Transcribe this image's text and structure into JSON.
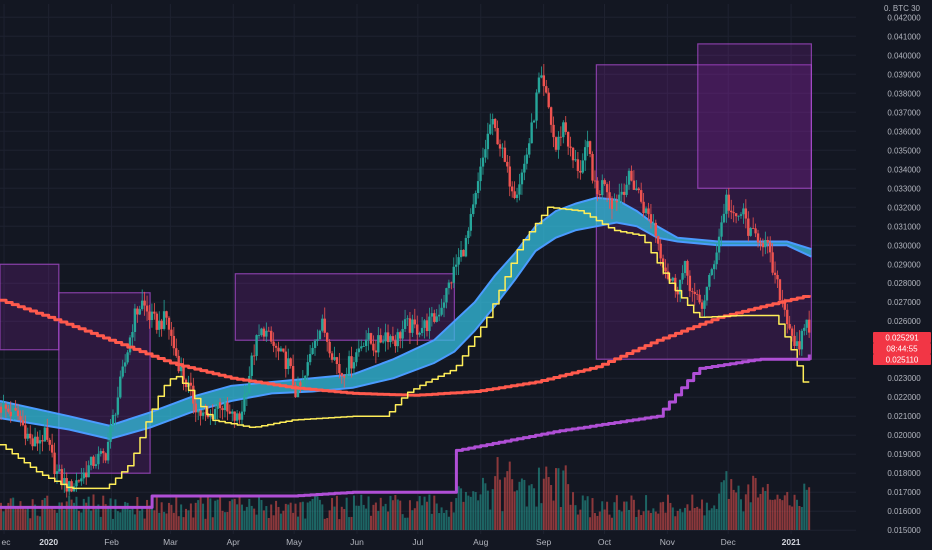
{
  "chart_data": {
    "type": "candlestick",
    "symbol_label": "0. BTC 30",
    "grid": true,
    "legend": "none",
    "y_ticks": [
      "0.042000",
      "0.041000",
      "0.040000",
      "0.039000",
      "0.038000",
      "0.037000",
      "0.036000",
      "0.035000",
      "0.034000",
      "0.033000",
      "0.032000",
      "0.031000",
      "0.030000",
      "0.029000",
      "0.028000",
      "0.027000",
      "0.026000",
      "0.024000",
      "0.023000",
      "0.022000",
      "0.021000",
      "0.020000",
      "0.019000",
      "0.018000",
      "0.017000",
      "0.016000",
      "0.015000"
    ],
    "ylim": [
      0.0148,
      0.0427
    ],
    "x_ticks": [
      {
        "label": "ec",
        "day": -22,
        "bold": false
      },
      {
        "label": "2020",
        "day": 0,
        "bold": true
      },
      {
        "label": "Feb",
        "day": 31,
        "bold": false
      },
      {
        "label": "Mar",
        "day": 60,
        "bold": false
      },
      {
        "label": "Apr",
        "day": 91,
        "bold": false
      },
      {
        "label": "May",
        "day": 121,
        "bold": false
      },
      {
        "label": "Jun",
        "day": 152,
        "bold": false
      },
      {
        "label": "Jul",
        "day": 182,
        "bold": false
      },
      {
        "label": "Aug",
        "day": 213,
        "bold": false
      },
      {
        "label": "Sep",
        "day": 244,
        "bold": false
      },
      {
        "label": "Oct",
        "day": 274,
        "bold": false
      },
      {
        "label": "Nov",
        "day": 305,
        "bold": false
      },
      {
        "label": "Dec",
        "day": 335,
        "bold": false
      },
      {
        "label": "2021",
        "day": 366,
        "bold": true
      }
    ],
    "xlim": [
      -24,
      398
    ],
    "price_path": [
      [
        -24,
        0.0215
      ],
      [
        -15,
        0.021
      ],
      [
        -8,
        0.0195
      ],
      [
        -2,
        0.02
      ],
      [
        4,
        0.018
      ],
      [
        10,
        0.0172
      ],
      [
        16,
        0.0178
      ],
      [
        22,
        0.0186
      ],
      [
        28,
        0.019
      ],
      [
        33,
        0.0215
      ],
      [
        38,
        0.024
      ],
      [
        42,
        0.0262
      ],
      [
        46,
        0.027
      ],
      [
        50,
        0.0262
      ],
      [
        54,
        0.0258
      ],
      [
        58,
        0.0262
      ],
      [
        62,
        0.0245
      ],
      [
        66,
        0.0232
      ],
      [
        70,
        0.0222
      ],
      [
        74,
        0.0212
      ],
      [
        79,
        0.0208
      ],
      [
        84,
        0.0218
      ],
      [
        89,
        0.021
      ],
      [
        94,
        0.0208
      ],
      [
        98,
        0.0228
      ],
      [
        102,
        0.0248
      ],
      [
        106,
        0.0256
      ],
      [
        110,
        0.0248
      ],
      [
        114,
        0.0242
      ],
      [
        118,
        0.0238
      ],
      [
        122,
        0.0222
      ],
      [
        126,
        0.0228
      ],
      [
        131,
        0.0252
      ],
      [
        135,
        0.0258
      ],
      [
        139,
        0.0246
      ],
      [
        144,
        0.0232
      ],
      [
        150,
        0.024
      ],
      [
        156,
        0.0252
      ],
      [
        161,
        0.0246
      ],
      [
        166,
        0.0254
      ],
      [
        171,
        0.025
      ],
      [
        176,
        0.0258
      ],
      [
        181,
        0.0256
      ],
      [
        186,
        0.0258
      ],
      [
        191,
        0.0262
      ],
      [
        196,
        0.0275
      ],
      [
        201,
        0.029
      ],
      [
        206,
        0.0302
      ],
      [
        210,
        0.0322
      ],
      [
        214,
        0.0345
      ],
      [
        218,
        0.0365
      ],
      [
        222,
        0.0355
      ],
      [
        226,
        0.0338
      ],
      [
        230,
        0.0328
      ],
      [
        234,
        0.034
      ],
      [
        238,
        0.036
      ],
      [
        242,
        0.0388
      ],
      [
        246,
        0.0375
      ],
      [
        250,
        0.035
      ],
      [
        254,
        0.0365
      ],
      [
        258,
        0.0345
      ],
      [
        262,
        0.034
      ],
      [
        266,
        0.0352
      ],
      [
        270,
        0.0325
      ],
      [
        274,
        0.0335
      ],
      [
        278,
        0.0322
      ],
      [
        282,
        0.0328
      ],
      [
        286,
        0.0335
      ],
      [
        290,
        0.033
      ],
      [
        294,
        0.0318
      ],
      [
        298,
        0.0312
      ],
      [
        302,
        0.0295
      ],
      [
        306,
        0.0282
      ],
      [
        310,
        0.0278
      ],
      [
        314,
        0.0288
      ],
      [
        318,
        0.0272
      ],
      [
        322,
        0.0268
      ],
      [
        326,
        0.0282
      ],
      [
        330,
        0.0302
      ],
      [
        334,
        0.0325
      ],
      [
        338,
        0.0312
      ],
      [
        342,
        0.0318
      ],
      [
        346,
        0.0305
      ],
      [
        350,
        0.0305
      ],
      [
        354,
        0.03
      ],
      [
        358,
        0.0282
      ],
      [
        362,
        0.027
      ],
      [
        366,
        0.0255
      ],
      [
        370,
        0.0242
      ],
      [
        373,
        0.0262
      ],
      [
        376,
        0.025
      ]
    ],
    "moving_averages": [
      {
        "color": "#ff5a4d",
        "width": 3,
        "points": [
          [
            -24,
            0.0271
          ],
          [
            0,
            0.0262
          ],
          [
            30,
            0.025
          ],
          [
            60,
            0.0238
          ],
          [
            90,
            0.023
          ],
          [
            120,
            0.0225
          ],
          [
            150,
            0.0222
          ],
          [
            180,
            0.0221
          ],
          [
            210,
            0.0223
          ],
          [
            240,
            0.0228
          ],
          [
            270,
            0.0236
          ],
          [
            300,
            0.025
          ],
          [
            330,
            0.0262
          ],
          [
            360,
            0.027
          ],
          [
            376,
            0.0274
          ]
        ]
      },
      {
        "color": "#ffee58",
        "width": 1.5,
        "points": [
          [
            -24,
            0.0195
          ],
          [
            -5,
            0.018
          ],
          [
            10,
            0.0172
          ],
          [
            28,
            0.0172
          ],
          [
            40,
            0.0185
          ],
          [
            48,
            0.0207
          ],
          [
            56,
            0.0225
          ],
          [
            62,
            0.0232
          ],
          [
            68,
            0.0225
          ],
          [
            80,
            0.0208
          ],
          [
            100,
            0.0204
          ],
          [
            120,
            0.0208
          ],
          [
            150,
            0.021
          ],
          [
            166,
            0.021
          ],
          [
            176,
            0.0222
          ],
          [
            186,
            0.0228
          ],
          [
            200,
            0.0235
          ],
          [
            216,
            0.0262
          ],
          [
            232,
            0.03
          ],
          [
            246,
            0.032
          ],
          [
            262,
            0.0318
          ],
          [
            278,
            0.0308
          ],
          [
            292,
            0.0305
          ],
          [
            306,
            0.028
          ],
          [
            320,
            0.0262
          ],
          [
            340,
            0.0263
          ],
          [
            358,
            0.0263
          ],
          [
            366,
            0.0245
          ],
          [
            372,
            0.0228
          ],
          [
            376,
            0.0228
          ]
        ]
      },
      {
        "color": "#b04fd6",
        "width": 3,
        "points": [
          [
            -24,
            0.0162
          ],
          [
            50,
            0.0162
          ],
          [
            51,
            0.0168
          ],
          [
            110,
            0.0168
          ],
          [
            120,
            0.0168
          ],
          [
            150,
            0.017
          ],
          [
            200,
            0.017
          ],
          [
            201,
            0.0192
          ],
          [
            250,
            0.0202
          ],
          [
            300,
            0.021
          ],
          [
            320,
            0.0235
          ],
          [
            350,
            0.024
          ],
          [
            374,
            0.024
          ],
          [
            376,
            0.0245
          ]
        ]
      }
    ],
    "cloud": {
      "upper": [
        [
          -24,
          0.0218
        ],
        [
          10,
          0.021
        ],
        [
          30,
          0.0205
        ],
        [
          50,
          0.0212
        ],
        [
          70,
          0.022
        ],
        [
          90,
          0.0226
        ],
        [
          110,
          0.0228
        ],
        [
          130,
          0.023
        ],
        [
          150,
          0.0232
        ],
        [
          170,
          0.024
        ],
        [
          190,
          0.025
        ],
        [
          200,
          0.026
        ],
        [
          210,
          0.027
        ],
        [
          220,
          0.0284
        ],
        [
          230,
          0.0296
        ],
        [
          240,
          0.031
        ],
        [
          250,
          0.0318
        ],
        [
          260,
          0.0322
        ],
        [
          270,
          0.0325
        ],
        [
          280,
          0.0324
        ],
        [
          290,
          0.0318
        ],
        [
          300,
          0.031
        ],
        [
          310,
          0.0304
        ],
        [
          330,
          0.0302
        ],
        [
          350,
          0.0302
        ],
        [
          364,
          0.0302
        ],
        [
          376,
          0.0298
        ]
      ],
      "lower": [
        [
          -24,
          0.0209
        ],
        [
          10,
          0.0203
        ],
        [
          30,
          0.0198
        ],
        [
          50,
          0.0204
        ],
        [
          70,
          0.0212
        ],
        [
          90,
          0.0218
        ],
        [
          110,
          0.0222
        ],
        [
          130,
          0.0223
        ],
        [
          150,
          0.0225
        ],
        [
          170,
          0.023
        ],
        [
          190,
          0.0238
        ],
        [
          200,
          0.0244
        ],
        [
          210,
          0.0255
        ],
        [
          220,
          0.0268
        ],
        [
          230,
          0.0282
        ],
        [
          240,
          0.0297
        ],
        [
          250,
          0.0304
        ],
        [
          260,
          0.0308
        ],
        [
          270,
          0.031
        ],
        [
          280,
          0.0312
        ],
        [
          290,
          0.031
        ],
        [
          300,
          0.0304
        ],
        [
          310,
          0.0302
        ],
        [
          330,
          0.03
        ],
        [
          350,
          0.03
        ],
        [
          364,
          0.03
        ],
        [
          376,
          0.0294
        ]
      ],
      "fill": "#34c0e0",
      "edge": "#4a9bff"
    },
    "purple_boxes": [
      {
        "x0": -24,
        "x1": 5,
        "y0": 0.0245,
        "y1": 0.029
      },
      {
        "x0": 5,
        "x1": 50,
        "y0": 0.018,
        "y1": 0.0275
      },
      {
        "x0": 92,
        "x1": 200,
        "y0": 0.025,
        "y1": 0.0285
      },
      {
        "x0": 270,
        "x1": 376,
        "y0": 0.024,
        "y1": 0.0395
      },
      {
        "x0": 320,
        "x1": 376,
        "y0": 0.033,
        "y1": 0.0406
      }
    ],
    "volume_ylim": [
      0,
      4.5
    ],
    "last_price_labels": [
      {
        "value": "0.025291",
        "color": "#f23645"
      },
      {
        "value": "08:44:55",
        "color": "#f23645"
      },
      {
        "value": "0.025110",
        "color": "#f23645"
      }
    ],
    "colors": {
      "up": "#26a69a",
      "down": "#ef5350",
      "background": "#131722",
      "grid": "#1e2230"
    }
  }
}
